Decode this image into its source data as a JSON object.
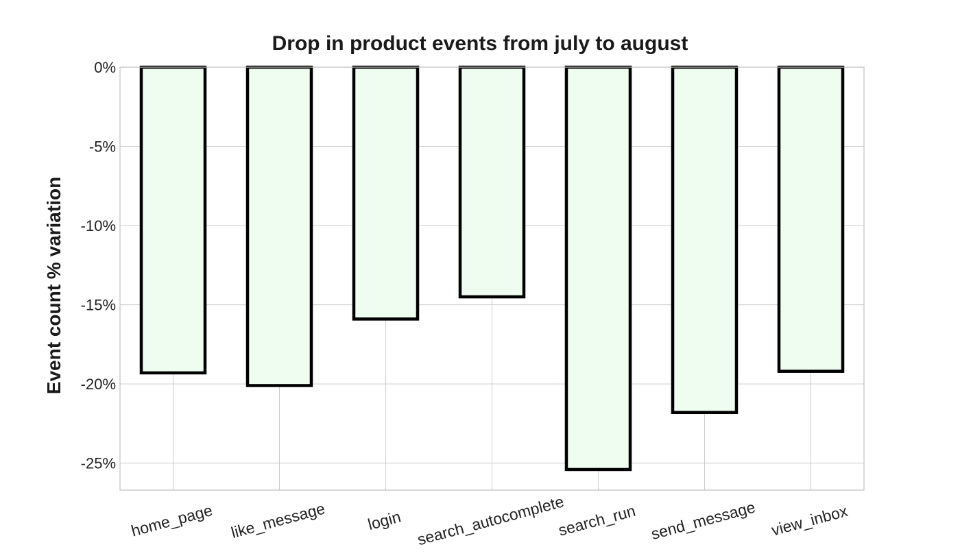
{
  "chart_data": {
    "type": "bar",
    "title": "Drop in product events from july to august",
    "xlabel": "",
    "ylabel": "Event count % variation",
    "categories": [
      "home_page",
      "like_message",
      "login",
      "search_autocomplete",
      "search_run",
      "send_message",
      "view_inbox"
    ],
    "values": [
      -19.3,
      -20.1,
      -15.9,
      -14.5,
      -25.4,
      -21.8,
      -19.2
    ],
    "value_unit": "%",
    "ylim": [
      -26.7,
      0
    ],
    "yticks": [
      0,
      -5,
      -10,
      -15,
      -20,
      -25
    ],
    "ytick_labels": [
      "0%",
      "-5%",
      "-10%",
      "-15%",
      "-20%",
      "-25%"
    ],
    "grid": true,
    "legend": "none",
    "bar_fill": "#effdf0",
    "bar_edge": "#000000"
  }
}
